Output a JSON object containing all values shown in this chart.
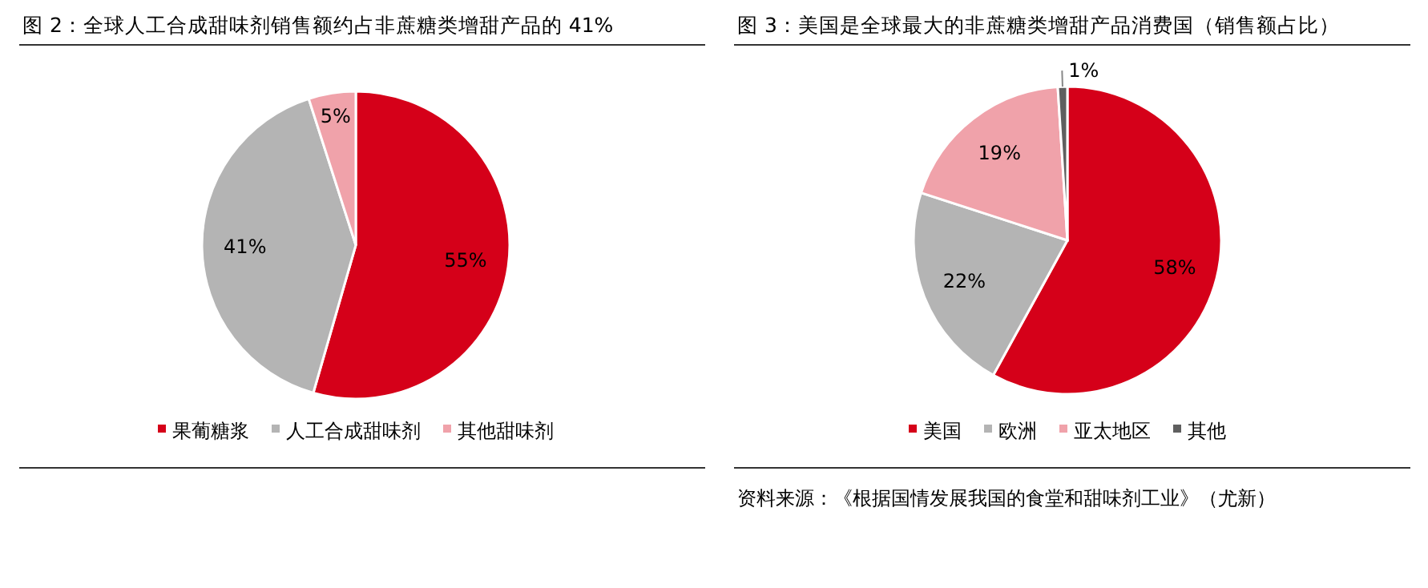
{
  "chart_data": [
    {
      "type": "pie",
      "title": "图 2：全球人工合成甜味剂销售额约占非蔗糖类增甜产品的 41%",
      "categories": [
        "果葡糖浆",
        "人工合成甜味剂",
        "其他甜味剂"
      ],
      "values": [
        55,
        41,
        5
      ],
      "value_labels": [
        "55%",
        "41%",
        "5%"
      ],
      "colors": [
        "#d50019",
        "#b4b4b4",
        "#f0a2aa"
      ],
      "legend": "bottom"
    },
    {
      "type": "pie",
      "title": "图 3：美国是全球最大的非蔗糖类增甜产品消费国（销售额占比）",
      "categories": [
        "美国",
        "欧洲",
        "亚太地区",
        "其他"
      ],
      "values": [
        58,
        22,
        19,
        1
      ],
      "value_labels": [
        "58%",
        "22%",
        "19%",
        "1%"
      ],
      "colors": [
        "#d50019",
        "#b4b4b4",
        "#f0a2aa",
        "#5f5f5f"
      ],
      "legend": "bottom",
      "annotations": [
        "资料来源：《根据国情发展我国的食堂和甜味剂工业》（尤新）"
      ]
    }
  ]
}
